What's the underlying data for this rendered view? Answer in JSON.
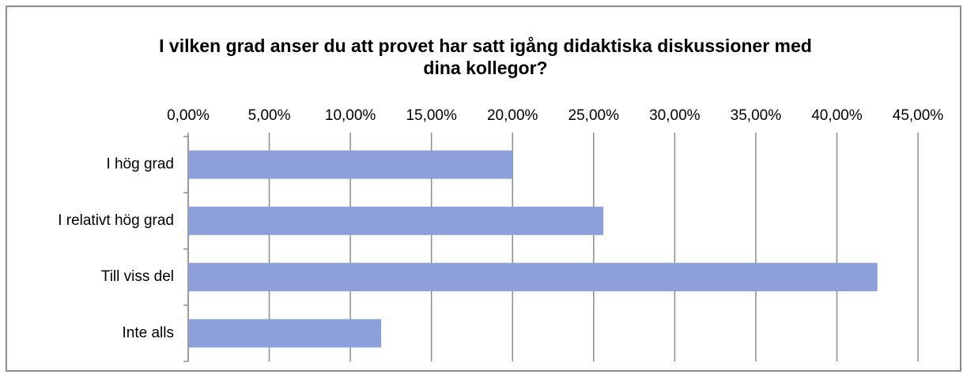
{
  "chart_data": {
    "type": "bar",
    "orientation": "horizontal",
    "title": "I vilken grad anser du att provet har satt igång didaktiska diskussioner med dina kollegor?",
    "categories": [
      "I hög grad",
      "I relativt hög grad",
      "Till viss del",
      "Inte alls"
    ],
    "values": [
      20,
      25.6,
      42.5,
      11.9
    ],
    "color": "#8ea0d9",
    "xlim": [
      0,
      45
    ],
    "xticks": [
      {
        "value": 0,
        "label": "0,00%"
      },
      {
        "value": 5,
        "label": "5,00%"
      },
      {
        "value": 10,
        "label": "10,00%"
      },
      {
        "value": 15,
        "label": "15,00%"
      },
      {
        "value": 20,
        "label": "20,00%"
      },
      {
        "value": 25,
        "label": "25,00%"
      },
      {
        "value": 30,
        "label": "30,00%"
      },
      {
        "value": 35,
        "label": "35,00%"
      },
      {
        "value": 40,
        "label": "40,00%"
      },
      {
        "value": 45,
        "label": "45,00%"
      }
    ],
    "grid": true
  }
}
